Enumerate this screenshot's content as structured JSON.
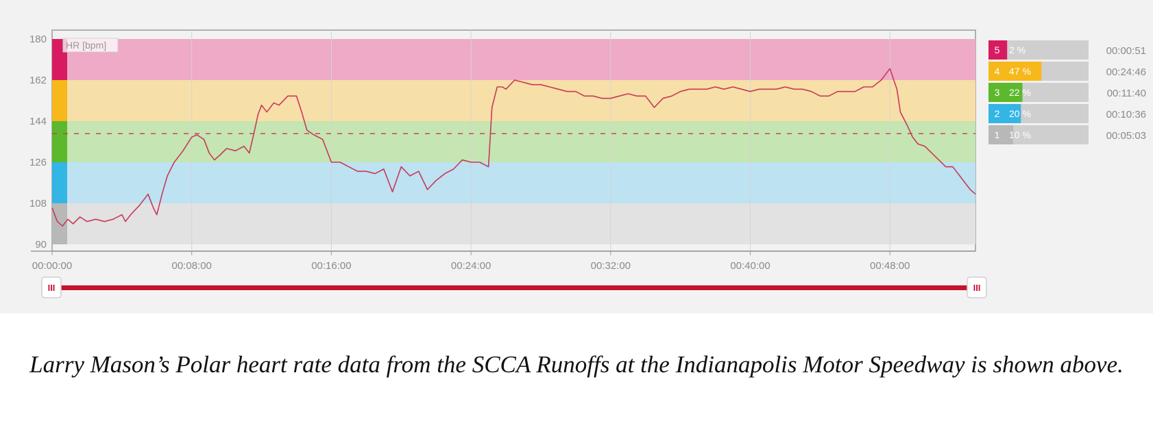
{
  "chart_data": {
    "type": "line",
    "ylabel": "HR [bpm]",
    "ylim": [
      90,
      180
    ],
    "yticks": [
      90,
      108,
      126,
      144,
      162,
      180
    ],
    "xlim_minutes": [
      0,
      52.9
    ],
    "xticks_minutes": [
      0,
      8,
      16,
      24,
      32,
      40,
      48
    ],
    "xtick_labels": [
      "00:00:00",
      "00:08:00",
      "00:16:00",
      "00:24:00",
      "00:32:00",
      "00:40:00",
      "00:48:00"
    ],
    "grid": true,
    "reference_line": 138.5,
    "zones": [
      {
        "zone": "5",
        "from": 162,
        "to": 180,
        "color": "#d81b60",
        "band": "#eeaac6",
        "percent": 2,
        "percent_label": "2 %",
        "time": "00:00:51"
      },
      {
        "zone": "4",
        "from": 144,
        "to": 162,
        "color": "#f6b81a",
        "band": "#f7dfa8",
        "percent": 47,
        "percent_label": "47 %",
        "time": "00:24:46"
      },
      {
        "zone": "3",
        "from": 126,
        "to": 144,
        "color": "#5cb82c",
        "band": "#c5e5b2",
        "percent": 22,
        "percent_label": "22 %",
        "time": "00:11:40"
      },
      {
        "zone": "2",
        "from": 108,
        "to": 126,
        "color": "#33b5e5",
        "band": "#bde2f2",
        "percent": 20,
        "percent_label": "20 %",
        "time": "00:10:36"
      },
      {
        "zone": "1",
        "from": 90,
        "to": 108,
        "color": "#b8b8b8",
        "band": "#e2e2e2",
        "percent": 10,
        "percent_label": "10 %",
        "time": "00:05:03"
      }
    ],
    "series": [
      {
        "line_color": "#c8385a",
        "x": [
          0,
          0.3,
          0.6,
          0.9,
          1.2,
          1.6,
          2.0,
          2.5,
          3.0,
          3.5,
          4.0,
          4.2,
          4.5,
          5.0,
          5.5,
          5.8,
          6.0,
          6.3,
          6.6,
          7.0,
          7.5,
          8.0,
          8.3,
          8.7,
          9.0,
          9.3,
          9.6,
          10.0,
          10.5,
          11.0,
          11.3,
          11.6,
          11.8,
          12.0,
          12.3,
          12.7,
          13.0,
          13.5,
          14.0,
          14.3,
          14.6,
          15.0,
          15.5,
          16.0,
          16.5,
          17.0,
          17.5,
          18.0,
          18.5,
          19.0,
          19.5,
          20.0,
          20.5,
          21.0,
          21.5,
          22.0,
          22.5,
          23.0,
          23.5,
          24.0,
          24.5,
          25.0,
          25.2,
          25.5,
          25.8,
          26.0,
          26.5,
          27.0,
          27.5,
          28.0,
          28.5,
          29.0,
          29.5,
          30.0,
          30.5,
          31.0,
          31.5,
          32.0,
          32.5,
          33.0,
          33.5,
          34.0,
          34.5,
          35.0,
          35.5,
          36.0,
          36.5,
          37.0,
          37.5,
          38.0,
          38.5,
          39.0,
          39.5,
          40.0,
          40.5,
          41.0,
          41.5,
          42.0,
          42.5,
          43.0,
          43.5,
          44.0,
          44.5,
          45.0,
          45.5,
          46.0,
          46.5,
          47.0,
          47.5,
          48.0,
          48.4,
          48.6,
          49.0,
          49.3,
          49.6,
          50.0,
          50.4,
          50.8,
          51.2,
          51.6,
          52.0,
          52.3,
          52.6,
          52.9
        ],
        "y": [
          106,
          100,
          98,
          101,
          99,
          102,
          100,
          101,
          100,
          101,
          103,
          100,
          103,
          107,
          112,
          106,
          103,
          112,
          120,
          126,
          131,
          137,
          138,
          136,
          130,
          127,
          129,
          132,
          131,
          133,
          130,
          140,
          147,
          151,
          148,
          152,
          151,
          155,
          155,
          148,
          140,
          138,
          136,
          126,
          126,
          124,
          122,
          122,
          121,
          123,
          113,
          124,
          120,
          122,
          114,
          118,
          121,
          123,
          127,
          126,
          126,
          124,
          150,
          159,
          159,
          158,
          162,
          161,
          160,
          160,
          159,
          158,
          157,
          157,
          155,
          155,
          154,
          154,
          155,
          156,
          155,
          155,
          150,
          154,
          155,
          157,
          158,
          158,
          158,
          159,
          158,
          159,
          158,
          157,
          158,
          158,
          158,
          159,
          158,
          158,
          157,
          155,
          155,
          157,
          157,
          157,
          159,
          159,
          162,
          167,
          158,
          148,
          142,
          137,
          134,
          133,
          130,
          127,
          124,
          124,
          120,
          117,
          114,
          112
        ]
      }
    ],
    "range_selector": {
      "handle_glyph": "III"
    }
  },
  "caption": "Larry Mason’s Polar heart rate data from the SCCA Runoffs at the Indianapolis Motor Speedway is shown above."
}
